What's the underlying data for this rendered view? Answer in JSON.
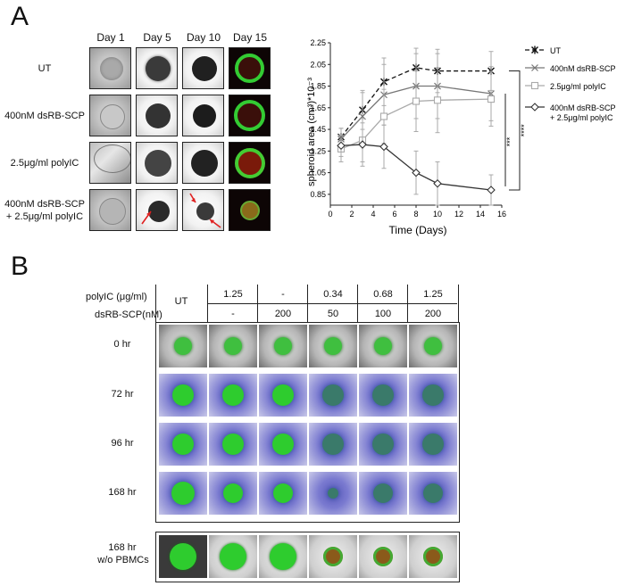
{
  "panelA": {
    "letter": "A",
    "days": [
      "Day 1",
      "Day 5",
      "Day 10",
      "Day 15"
    ],
    "rows": [
      "UT",
      "400nM dsRB-SCP",
      "2.5μg/ml polyIC",
      "400nM dsRB-SCP",
      "+ 2.5μg/ml polyIC"
    ]
  },
  "panelB": {
    "letter": "B",
    "header_polyIC_label": "polyIC (μg/ml)",
    "header_dsRB_label": "dsRB-SCP(nM)",
    "ut_label": "UT",
    "polyIC_values": [
      "1.25",
      "-",
      "0.34",
      "0.68",
      "1.25"
    ],
    "dsRB_values": [
      "-",
      "200",
      "50",
      "100",
      "200"
    ],
    "time_rows": [
      "0 hr",
      "72 hr",
      "96 hr",
      "168 hr"
    ],
    "bottom_row_line1": "168 hr",
    "bottom_row_line2": "w/o PBMCs"
  },
  "chart_data": {
    "type": "line",
    "xlabel": "Time (Days)",
    "ylabel": "spheroid area  (cm³)*10⁻³",
    "xlim": [
      0,
      16
    ],
    "ylim": [
      0.75,
      2.25
    ],
    "xticks": [
      "0",
      "2",
      "4",
      "6",
      "8",
      "10",
      "12",
      "14",
      "16"
    ],
    "yticks": [
      "0.85",
      "1.05",
      "1.25",
      "1.45",
      "1.65",
      "1.85",
      "2.05",
      "2.25"
    ],
    "x": [
      1,
      3,
      5,
      8,
      10,
      15
    ],
    "series": [
      {
        "name": "UT",
        "values": [
          1.38,
          1.63,
          1.89,
          2.02,
          1.99,
          1.99
        ],
        "errors": [
          0.08,
          0.18,
          0.22,
          0.18,
          0.2,
          0.18
        ],
        "color": "#111111",
        "dash": true,
        "marker": "asterisk"
      },
      {
        "name": "400nM dsRB-SCP",
        "values": [
          1.36,
          1.57,
          1.77,
          1.85,
          1.85,
          1.78
        ],
        "errors": [
          0.1,
          0.22,
          0.28,
          0.3,
          0.3,
          0.25
        ],
        "color": "#777777",
        "dash": false,
        "marker": "x"
      },
      {
        "name": "2.5μg/ml polyIC",
        "values": [
          1.27,
          1.35,
          1.57,
          1.71,
          1.72,
          1.73
        ],
        "errors": [
          0.12,
          0.2,
          0.25,
          0.28,
          0.3,
          0.25
        ],
        "color": "#aaaaaa",
        "dash": false,
        "marker": "square"
      },
      {
        "name": "400nM dsRB-SCP\n+ 2.5μg/ml polyIC",
        "values": [
          1.3,
          1.31,
          1.29,
          1.05,
          0.95,
          0.89
        ],
        "errors": [
          0.1,
          0.2,
          0.2,
          0.2,
          0.2,
          0.14
        ],
        "color": "#333333",
        "dash": false,
        "marker": "diamond"
      }
    ],
    "significance": [
      "****",
      "***"
    ]
  }
}
